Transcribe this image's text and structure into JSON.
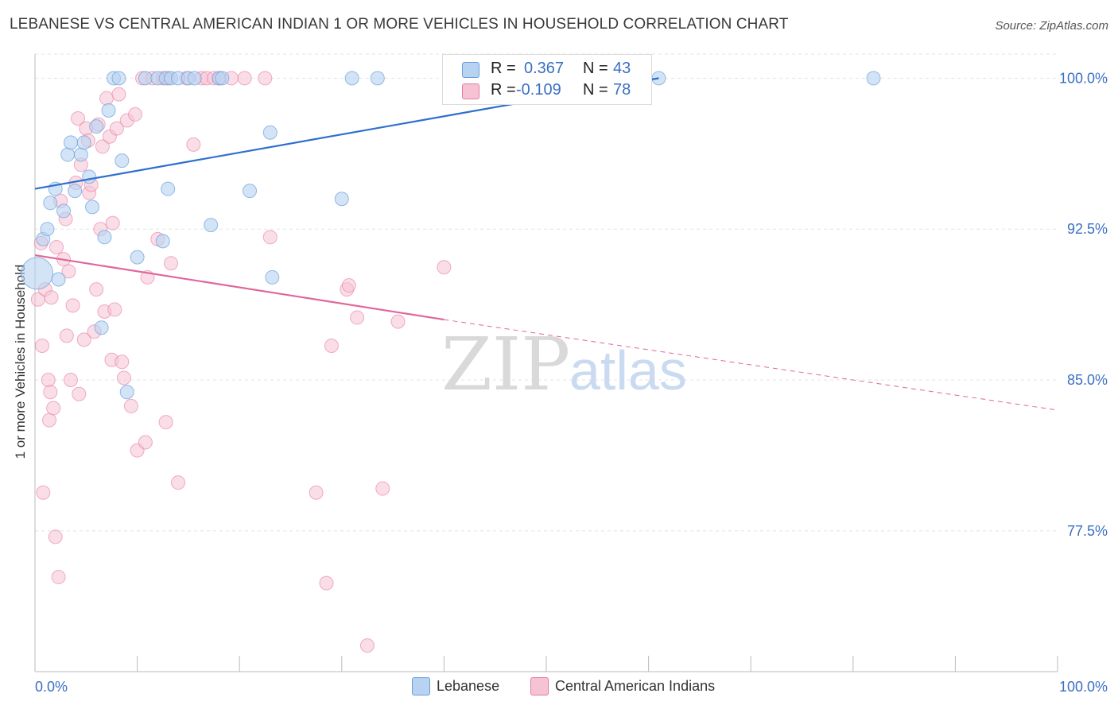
{
  "title": "LEBANESE VS CENTRAL AMERICAN INDIAN 1 OR MORE VEHICLES IN HOUSEHOLD CORRELATION CHART",
  "source": "Source: ZipAtlas.com",
  "watermark": {
    "zip": "ZIP",
    "atlas": "atlas"
  },
  "legend": {
    "r_label": "R =",
    "n_label": "N =",
    "lebanese": {
      "r": "0.367",
      "n": "43"
    },
    "cai": {
      "r": "-0.109",
      "n": "78"
    }
  },
  "chart_data": {
    "type": "scatter",
    "title": "LEBANESE VS CENTRAL AMERICAN INDIAN 1 OR MORE VEHICLES IN HOUSEHOLD CORRELATION CHART",
    "ylabel": "1 or more Vehicles in Household",
    "xlabel": "",
    "xlim": [
      0,
      100
    ],
    "ylim": [
      70.5,
      101.2
    ],
    "x_tick_labels": [
      "0.0%",
      "100.0%"
    ],
    "y_ticks": [
      77.5,
      85.0,
      92.5,
      100.0
    ],
    "y_tick_labels": [
      "77.5%",
      "85.0%",
      "92.5%",
      "100.0%"
    ],
    "grid": true,
    "legend_position": "bottom",
    "colors": {
      "lebanese": "#6a9fdc",
      "lebanese_fill": "#b8d2f2",
      "cai": "#e87aa0",
      "cai_fill": "#f6c3d4",
      "blue_text": "#3a6fc4"
    },
    "series": [
      {
        "name": "Lebanese",
        "r": 0.367,
        "n": 43,
        "trend": {
          "x0": 0,
          "y0": 94.5,
          "x1": 61,
          "y1": 100.0,
          "dashed_to": 61
        },
        "points": [
          [
            0.2,
            90.3
          ],
          [
            0.8,
            92.0
          ],
          [
            1.2,
            92.5
          ],
          [
            1.5,
            93.8
          ],
          [
            2.0,
            94.5
          ],
          [
            2.3,
            90.0
          ],
          [
            2.8,
            93.4
          ],
          [
            3.2,
            96.2
          ],
          [
            3.5,
            96.8
          ],
          [
            3.9,
            94.4
          ],
          [
            4.5,
            96.2
          ],
          [
            4.8,
            96.8
          ],
          [
            5.3,
            95.1
          ],
          [
            5.6,
            93.6
          ],
          [
            6.0,
            97.6
          ],
          [
            6.5,
            87.6
          ],
          [
            6.8,
            92.1
          ],
          [
            7.2,
            98.4
          ],
          [
            7.7,
            100.0
          ],
          [
            8.2,
            100.0
          ],
          [
            8.5,
            95.9
          ],
          [
            9.0,
            84.4
          ],
          [
            10.0,
            91.1
          ],
          [
            10.8,
            100.0
          ],
          [
            12.0,
            100.0
          ],
          [
            12.5,
            91.9
          ],
          [
            12.8,
            100.0
          ],
          [
            13.0,
            94.5
          ],
          [
            13.3,
            100.0
          ],
          [
            14.0,
            100.0
          ],
          [
            15.0,
            100.0
          ],
          [
            15.6,
            100.0
          ],
          [
            17.2,
            92.7
          ],
          [
            18.0,
            100.0
          ],
          [
            21.0,
            94.4
          ],
          [
            23.0,
            97.3
          ],
          [
            23.2,
            90.1
          ],
          [
            30.0,
            94.0
          ],
          [
            31.0,
            100.0
          ],
          [
            33.5,
            100.0
          ],
          [
            61.0,
            100.0
          ],
          [
            82.0,
            100.0
          ],
          [
            18.3,
            100.0
          ]
        ]
      },
      {
        "name": "Central American Indians",
        "r": -0.109,
        "n": 78,
        "trend": {
          "x0": 0,
          "y0": 91.2,
          "x1": 40,
          "y1": 88.0,
          "dashed_to": 100,
          "y_end": 83.5
        },
        "points": [
          [
            0.3,
            89.0
          ],
          [
            0.6,
            91.8
          ],
          [
            0.7,
            86.7
          ],
          [
            0.8,
            79.4
          ],
          [
            1.0,
            89.5
          ],
          [
            1.3,
            85.0
          ],
          [
            1.4,
            83.0
          ],
          [
            1.5,
            84.4
          ],
          [
            1.6,
            89.1
          ],
          [
            1.8,
            83.6
          ],
          [
            2.0,
            77.2
          ],
          [
            2.1,
            91.6
          ],
          [
            2.3,
            75.2
          ],
          [
            2.5,
            93.9
          ],
          [
            2.8,
            91.0
          ],
          [
            3.0,
            93.0
          ],
          [
            3.1,
            87.2
          ],
          [
            3.3,
            90.4
          ],
          [
            3.5,
            85.0
          ],
          [
            3.7,
            88.7
          ],
          [
            4.0,
            94.8
          ],
          [
            4.2,
            98.0
          ],
          [
            4.3,
            84.3
          ],
          [
            4.5,
            95.7
          ],
          [
            4.8,
            87.0
          ],
          [
            5.0,
            97.5
          ],
          [
            5.2,
            96.9
          ],
          [
            5.3,
            94.3
          ],
          [
            5.5,
            94.7
          ],
          [
            5.8,
            87.4
          ],
          [
            6.0,
            89.5
          ],
          [
            6.2,
            97.7
          ],
          [
            6.4,
            92.5
          ],
          [
            6.6,
            96.6
          ],
          [
            6.8,
            88.4
          ],
          [
            7.0,
            99.0
          ],
          [
            7.3,
            97.1
          ],
          [
            7.5,
            86.0
          ],
          [
            7.6,
            92.8
          ],
          [
            7.8,
            88.5
          ],
          [
            8.0,
            97.5
          ],
          [
            8.2,
            99.2
          ],
          [
            8.5,
            85.9
          ],
          [
            8.7,
            85.1
          ],
          [
            9.0,
            97.9
          ],
          [
            9.4,
            83.7
          ],
          [
            9.8,
            98.2
          ],
          [
            10.0,
            81.5
          ],
          [
            10.5,
            100.0
          ],
          [
            10.8,
            81.9
          ],
          [
            11.0,
            90.1
          ],
          [
            11.5,
            100.0
          ],
          [
            12.0,
            92.0
          ],
          [
            12.5,
            100.0
          ],
          [
            12.8,
            82.9
          ],
          [
            13.0,
            100.0
          ],
          [
            13.3,
            90.8
          ],
          [
            14.0,
            79.9
          ],
          [
            14.8,
            100.0
          ],
          [
            15.5,
            96.7
          ],
          [
            16.3,
            100.0
          ],
          [
            16.8,
            100.0
          ],
          [
            17.5,
            100.0
          ],
          [
            18.0,
            100.0
          ],
          [
            19.2,
            100.0
          ],
          [
            22.5,
            100.0
          ],
          [
            23.0,
            92.1
          ],
          [
            27.5,
            79.4
          ],
          [
            28.5,
            74.9
          ],
          [
            29.0,
            86.7
          ],
          [
            30.5,
            89.5
          ],
          [
            30.7,
            89.7
          ],
          [
            31.5,
            88.1
          ],
          [
            32.5,
            71.8
          ],
          [
            34.0,
            79.6
          ],
          [
            35.5,
            87.9
          ],
          [
            40.0,
            90.6
          ],
          [
            20.5,
            100.0
          ]
        ]
      }
    ]
  },
  "bottom_legend": {
    "lebanese": "Lebanese",
    "cai": "Central American Indians"
  }
}
